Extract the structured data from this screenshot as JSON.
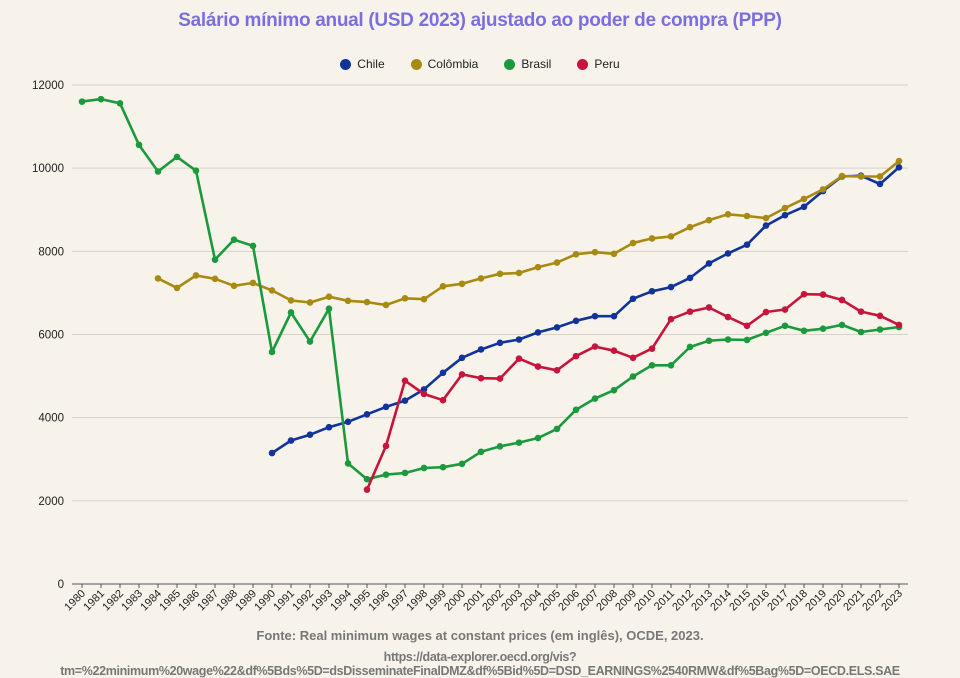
{
  "title": "Salário mínimo anual (USD 2023) ajustado ao poder de compra (PPP)",
  "source_line1": "Fonte: Real minimum wages at constant prices (em inglês), OCDE, 2023.",
  "source_line2": "https://data-explorer.oecd.org/vis?tm=%22minimum%20wage%22&df%5Bds%5D=dsDisseminateFinalDMZ&df%5Bid%5D=DSD_EARNINGS%2540RMW&df%5Bag%5D=OECD.ELS.SAE",
  "chart_data": {
    "type": "line",
    "title": "Salário mínimo anual (USD 2023) ajustado ao poder de compra (PPP)",
    "x": [
      1980,
      1981,
      1982,
      1983,
      1984,
      1985,
      1986,
      1987,
      1988,
      1989,
      1990,
      1991,
      1992,
      1993,
      1994,
      1995,
      1996,
      1997,
      1998,
      1999,
      2000,
      2001,
      2002,
      2003,
      2004,
      2005,
      2006,
      2007,
      2008,
      2009,
      2010,
      2011,
      2012,
      2013,
      2014,
      2015,
      2016,
      2017,
      2018,
      2019,
      2020,
      2021,
      2022,
      2023
    ],
    "ylim": [
      0,
      12000
    ],
    "yticks": [
      0,
      2000,
      4000,
      6000,
      8000,
      10000,
      12000
    ],
    "grid": true,
    "legend_position": "top-center",
    "series": [
      {
        "name": "Chile",
        "color": "#12349a",
        "values": [
          null,
          null,
          null,
          null,
          null,
          null,
          null,
          null,
          null,
          null,
          3150,
          3450,
          3590,
          3770,
          3900,
          4080,
          4260,
          4410,
          4680,
          5080,
          5440,
          5640,
          5800,
          5880,
          6050,
          6170,
          6330,
          6440,
          6440,
          6860,
          7040,
          7140,
          7360,
          7710,
          7950,
          8160,
          8620,
          8870,
          9070,
          9450,
          9800,
          9820,
          9620,
          10020
        ]
      },
      {
        "name": "Colômbia",
        "color": "#a88a12",
        "values": [
          null,
          null,
          null,
          null,
          7350,
          7120,
          7420,
          7340,
          7170,
          7240,
          7060,
          6820,
          6770,
          6910,
          6810,
          6780,
          6710,
          6870,
          6850,
          7160,
          7220,
          7350,
          7460,
          7480,
          7620,
          7730,
          7930,
          7980,
          7940,
          8200,
          8310,
          8360,
          8580,
          8750,
          8890,
          8850,
          8800,
          9040,
          9260,
          9490,
          9810,
          9800,
          9800,
          10170
        ]
      },
      {
        "name": "Brasil",
        "color": "#1a9a3c",
        "values": [
          11600,
          11660,
          11560,
          10560,
          9920,
          10270,
          9940,
          7800,
          8280,
          8130,
          5580,
          6530,
          5830,
          6620,
          2900,
          2520,
          2630,
          2670,
          2790,
          2810,
          2890,
          3180,
          3310,
          3400,
          3510,
          3730,
          4190,
          4460,
          4660,
          4990,
          5260,
          5260,
          5700,
          5850,
          5880,
          5870,
          6040,
          6210,
          6090,
          6140,
          6230,
          6060,
          6120,
          6180
        ]
      },
      {
        "name": "Peru",
        "color": "#c8143c",
        "values": [
          null,
          null,
          null,
          null,
          null,
          null,
          null,
          null,
          null,
          null,
          null,
          null,
          null,
          null,
          null,
          2270,
          3320,
          4890,
          4570,
          4420,
          5040,
          4950,
          4940,
          5420,
          5230,
          5140,
          5480,
          5710,
          5610,
          5440,
          5660,
          6370,
          6550,
          6650,
          6420,
          6210,
          6540,
          6600,
          6970,
          6960,
          6830,
          6550,
          6450,
          6230
        ]
      }
    ]
  }
}
